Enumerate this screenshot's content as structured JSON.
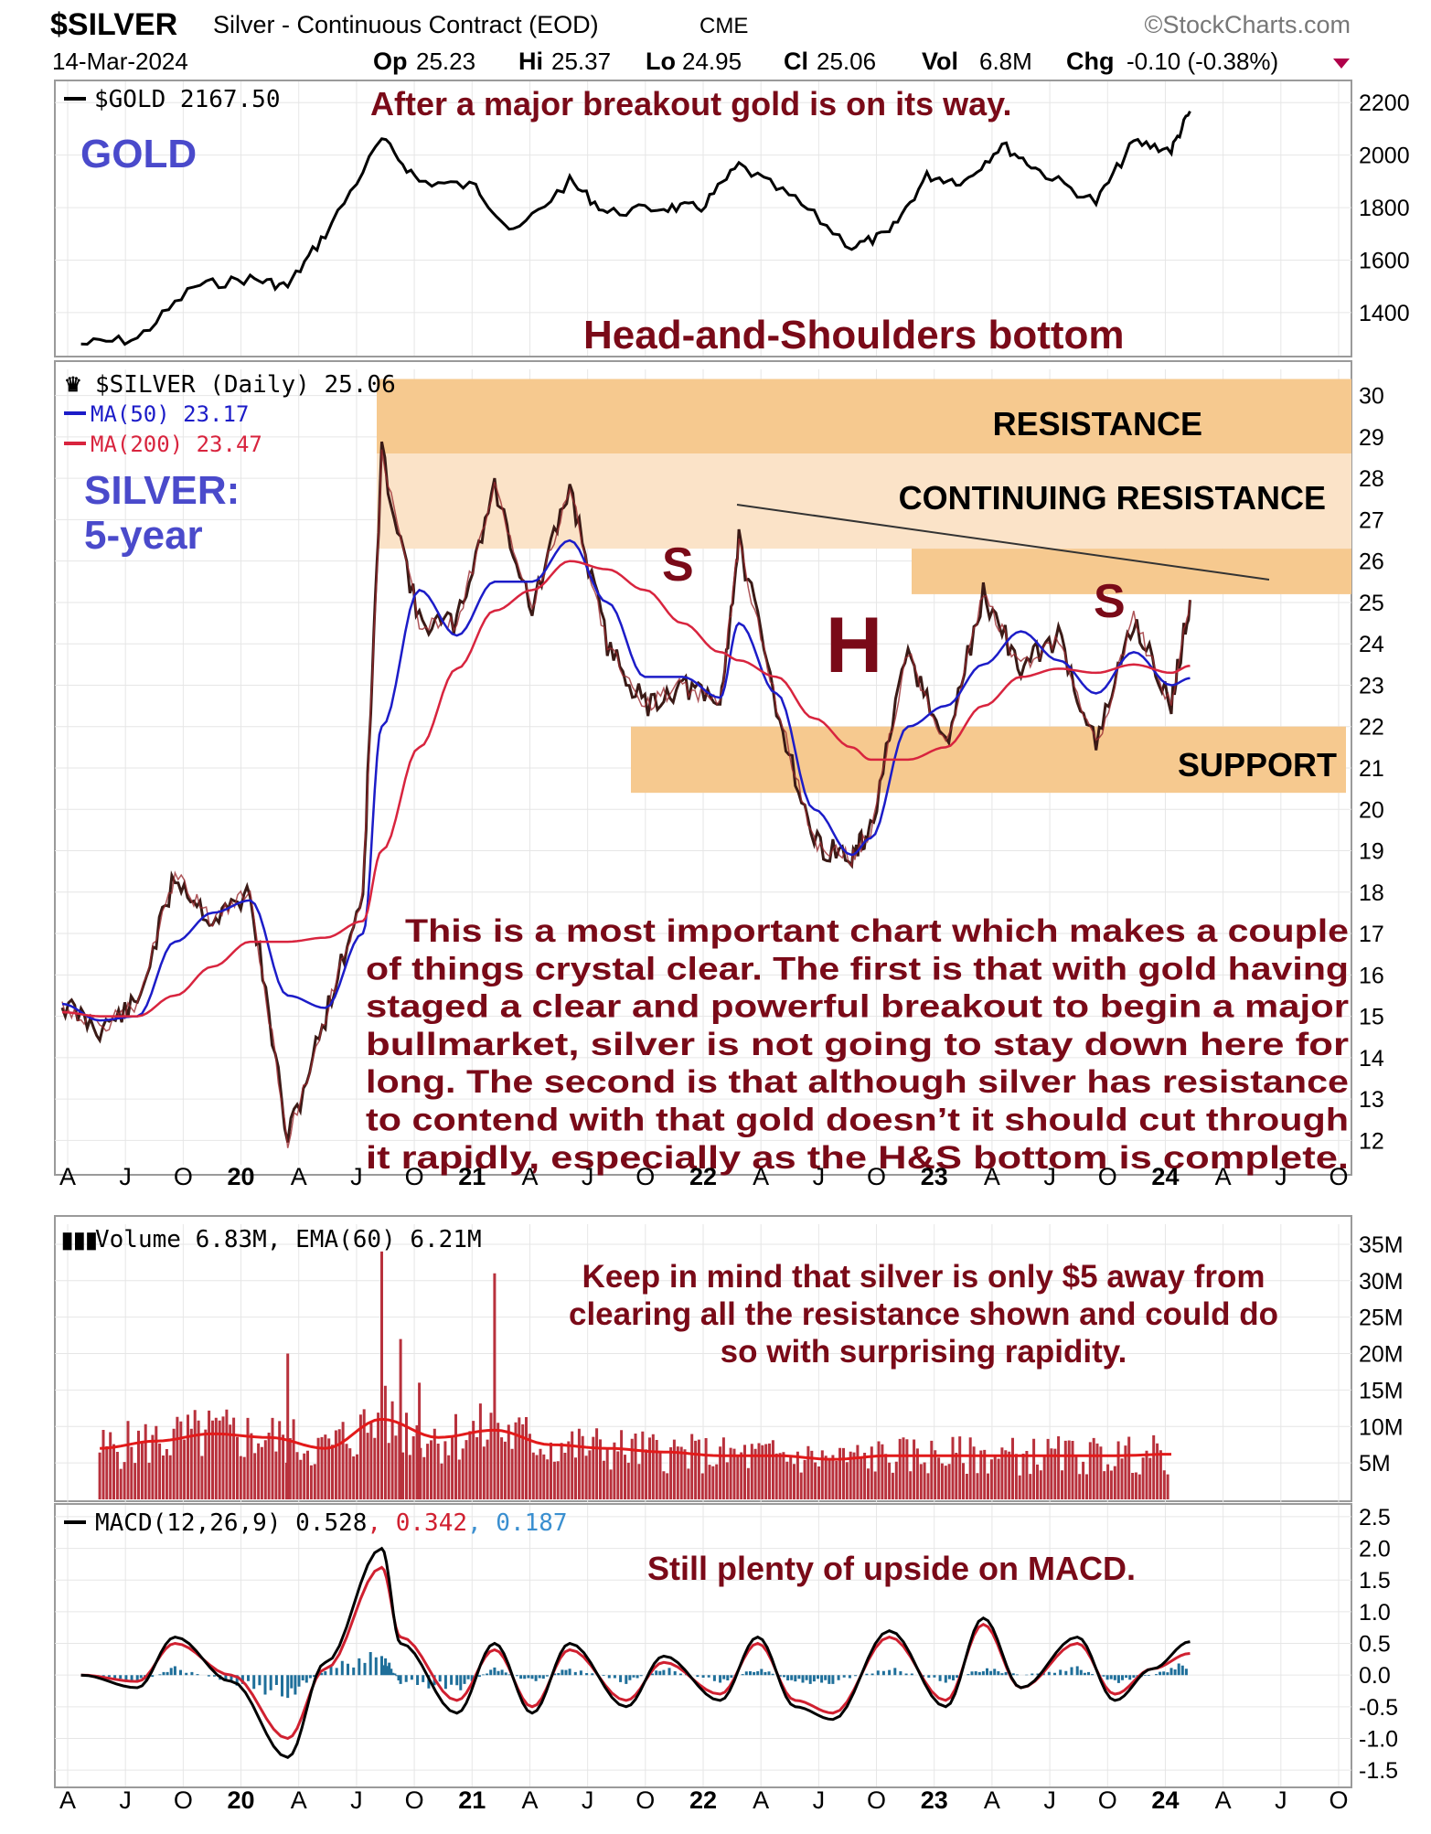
{
  "header": {
    "symbol": "$SILVER",
    "description": "Silver - Continuous Contract (EOD)",
    "exchange": "CME",
    "brand": "©StockCharts.com",
    "date": "14-Mar-2024",
    "op_label": "Op",
    "op": "25.23",
    "hi_label": "Hi",
    "hi": "25.37",
    "lo_label": "Lo",
    "lo": "24.95",
    "cl_label": "Cl",
    "cl": "25.06",
    "vol_label": "Vol",
    "vol": "6.8M",
    "chg_label": "Chg",
    "chg": "-0.10 (-0.38%)",
    "chg_color": "#b0004a"
  },
  "colors": {
    "annotation": "#7a0a18",
    "blue_text": "#4a4acb",
    "zone": "#f6c98f",
    "zone_light": "#fbe3c8",
    "ma50": "#1c1cc8",
    "ma200": "#d8243e",
    "volume": "#b8313c",
    "macd_signal": "#1f6f9a"
  },
  "x_axis": {
    "labels": [
      "A",
      "J",
      "O",
      "20",
      "A",
      "J",
      "O",
      "21",
      "A",
      "J",
      "O",
      "22",
      "A",
      "J",
      "O",
      "23",
      "A",
      "J",
      "O",
      "24",
      "A",
      "J",
      "O"
    ]
  },
  "gold_panel": {
    "legend": "$GOLD 2167.50",
    "label": "GOLD",
    "annotation": "After a major breakout gold is on its way.",
    "pattern_label": "Head-and-Shoulders bottom",
    "y_ticks": [
      "2200",
      "2000",
      "1800",
      "1600",
      "1400"
    ]
  },
  "silver_panel": {
    "legend": "$SILVER (Daily) 25.06",
    "ma50_label": "MA(50) 23.17",
    "ma200_label": "MA(200) 23.47",
    "title_line1": "SILVER:",
    "title_line2": "5-year",
    "zone_resistance": "RESISTANCE",
    "zone_continuing": "CONTINUING RESISTANCE",
    "zone_support": "SUPPORT",
    "left_shoulder": "S",
    "head": "H",
    "right_shoulder": "S",
    "commentary": [
      "This is a most important chart which makes a couple",
      "of things crystal clear. The first is that with gold having",
      "staged a clear and powerful breakout to begin a major",
      "bullmarket, silver is not going to stay down here for",
      "long. The second is that although silver has resistance",
      "to contend with that gold doesn’t it should cut through",
      "it rapidly, especially as the H&S bottom is complete."
    ],
    "y_ticks": [
      "30",
      "29",
      "28",
      "27",
      "26",
      "25",
      "24",
      "23",
      "22",
      "21",
      "20",
      "19",
      "18",
      "17",
      "16",
      "15",
      "14",
      "13",
      "12"
    ]
  },
  "volume_panel": {
    "legend": "Volume 6.83M, EMA(60) 6.21M",
    "annotation": [
      "Keep in mind that silver is only $5 away from",
      "clearing all the resistance shown and could do",
      "so with surprising rapidity."
    ],
    "y_ticks": [
      "35M",
      "30M",
      "25M",
      "20M",
      "15M",
      "10M",
      "5M"
    ]
  },
  "macd_panel": {
    "legend_main": "MACD(12,26,9) 0.528",
    "legend_signal": ", 0.342",
    "legend_hist": ", 0.187",
    "annotation": "Still plenty of upside on MACD.",
    "y_ticks": [
      "2.5",
      "2.0",
      "1.5",
      "1.0",
      "0.5",
      "0.0",
      "-0.5",
      "-1.0",
      "-1.5"
    ]
  },
  "chart_data": [
    {
      "type": "line",
      "title": "$GOLD 2167.50",
      "x": [
        "2019-04",
        "2019-07",
        "2019-10",
        "2020-01",
        "2020-03",
        "2020-05",
        "2020-08",
        "2020-10",
        "2021-01",
        "2021-03",
        "2021-06",
        "2021-08",
        "2021-11",
        "2022-01",
        "2022-03",
        "2022-06",
        "2022-09",
        "2022-11",
        "2023-01",
        "2023-03",
        "2023-05",
        "2023-07",
        "2023-10",
        "2023-12",
        "2024-02",
        "2024-03"
      ],
      "series": [
        {
          "name": "$GOLD",
          "values": [
            1280,
            1300,
            1500,
            1530,
            1500,
            1700,
            2060,
            1900,
            1880,
            1700,
            1900,
            1780,
            1800,
            1800,
            1960,
            1830,
            1650,
            1700,
            1920,
            1900,
            2040,
            1940,
            1820,
            2050,
            2020,
            2167
          ]
        }
      ],
      "ylim": [
        1250,
        2260
      ]
    },
    {
      "type": "line",
      "title": "$SILVER (Daily) 25.06",
      "x": [
        "2019-03",
        "2019-05",
        "2019-07",
        "2019-09",
        "2019-11",
        "2020-01",
        "2020-03",
        "2020-05",
        "2020-07",
        "2020-08",
        "2020-10",
        "2020-12",
        "2021-02",
        "2021-04",
        "2021-06",
        "2021-08",
        "2021-10",
        "2021-12",
        "2022-02",
        "2022-03",
        "2022-05",
        "2022-07",
        "2022-09",
        "2022-10",
        "2022-12",
        "2023-02",
        "2023-04",
        "2023-06",
        "2023-08",
        "2023-10",
        "2023-12",
        "2024-02",
        "2024-03"
      ],
      "series": [
        {
          "name": "$SILVER",
          "values": [
            15.3,
            14.7,
            15.3,
            18.4,
            17.3,
            18,
            12,
            15,
            18,
            28.6,
            24.5,
            24.5,
            27.8,
            24.8,
            27.8,
            24,
            22.5,
            23,
            22.5,
            26.5,
            22.5,
            19.2,
            18.8,
            19.5,
            23.8,
            21.5,
            25.2,
            23.4,
            24.2,
            21.5,
            24.6,
            22.5,
            25.06
          ]
        },
        {
          "name": "MA(50)",
          "values": [
            15.3,
            14.9,
            15,
            16.8,
            17.5,
            17.8,
            15.5,
            15.2,
            17,
            22,
            25.3,
            24.2,
            25.5,
            25.5,
            26.5,
            25,
            23.2,
            23.2,
            22.7,
            24.5,
            22.8,
            20,
            18.9,
            19.3,
            22,
            22.5,
            23.5,
            24.3,
            23.6,
            22.8,
            23.8,
            23,
            23.17
          ]
        },
        {
          "name": "MA(200)",
          "values": [
            15.1,
            15,
            15,
            15.5,
            16.2,
            16.8,
            16.8,
            16.9,
            17.3,
            19,
            21.5,
            23.4,
            24.8,
            25.3,
            26,
            25.8,
            25.3,
            24.5,
            23.8,
            23.6,
            23.2,
            22.2,
            21.5,
            21.2,
            21.2,
            21.5,
            22.5,
            23.2,
            23.4,
            23.3,
            23.5,
            23.3,
            23.47
          ]
        }
      ],
      "ylim": [
        11.5,
        30.5
      ]
    },
    {
      "type": "bar",
      "title": "Volume 6.83M, EMA(60) 6.21M",
      "x": [
        "2019-Q2",
        "2019-Q3",
        "2019-Q4",
        "2020-Q1",
        "2020-Q2",
        "2020-Q3",
        "2020-Q4",
        "2021-Q1",
        "2021-Q2",
        "2021-Q3",
        "2021-Q4",
        "2022-Q1",
        "2022-Q2",
        "2022-Q3",
        "2022-Q4",
        "2023-Q1",
        "2023-Q2",
        "2023-Q3",
        "2023-Q4",
        "2024-Q1"
      ],
      "series": [
        {
          "name": "EMA(60)",
          "values": [
            7,
            8,
            9,
            8.5,
            7,
            11,
            8.5,
            9.5,
            7.5,
            7,
            6.5,
            6,
            6,
            5.5,
            6,
            6,
            6,
            6,
            6,
            6.2
          ]
        }
      ],
      "ylim": [
        0,
        37
      ]
    },
    {
      "type": "line",
      "title": "MACD(12,26,9) 0.528",
      "x": [
        "2019-04",
        "2019-07",
        "2019-09",
        "2019-12",
        "2020-03",
        "2020-05",
        "2020-08",
        "2020-09",
        "2020-12",
        "2021-02",
        "2021-04",
        "2021-06",
        "2021-09",
        "2021-11",
        "2022-02",
        "2022-04",
        "2022-06",
        "2022-08",
        "2022-11",
        "2023-02",
        "2023-04",
        "2023-06",
        "2023-09",
        "2023-11",
        "2024-01",
        "2024-03"
      ],
      "series": [
        {
          "name": "MACD",
          "values": [
            0,
            -0.2,
            0.6,
            -0.1,
            -1.3,
            0.2,
            2.0,
            0.5,
            -0.6,
            0.5,
            -0.6,
            0.5,
            -0.5,
            0.3,
            -0.4,
            0.6,
            -0.5,
            -0.7,
            0.7,
            -0.5,
            0.9,
            -0.2,
            0.6,
            -0.4,
            0.1,
            0.528
          ]
        },
        {
          "name": "Signal",
          "values": [
            0,
            -0.1,
            0.5,
            0,
            -1.0,
            0.1,
            1.7,
            0.6,
            -0.4,
            0.4,
            -0.5,
            0.4,
            -0.4,
            0.2,
            -0.3,
            0.5,
            -0.4,
            -0.6,
            0.6,
            -0.4,
            0.8,
            -0.2,
            0.5,
            -0.3,
            0.1,
            0.342
          ]
        },
        {
          "name": "Histogram",
          "values": [
            0,
            -0.1,
            0.1,
            -0.1,
            -0.3,
            0.1,
            0.3,
            -0.1,
            -0.2,
            0.1,
            -0.1,
            0.1,
            -0.1,
            0.1,
            -0.1,
            0.1,
            -0.1,
            -0.1,
            0.1,
            -0.1,
            0.1,
            0,
            0.1,
            -0.1,
            0,
            0.187
          ]
        }
      ],
      "ylim": [
        -1.7,
        2.6
      ]
    }
  ]
}
